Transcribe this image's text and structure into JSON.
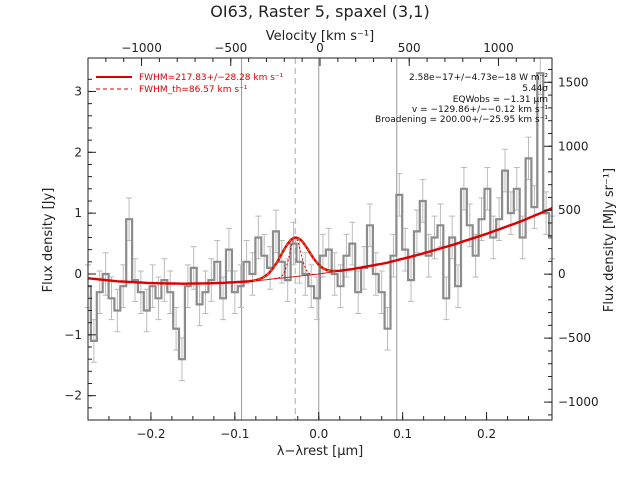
{
  "title": "OI63, Raster 5, spaxel (3,1)",
  "colors": {
    "spectrum": "#8c8c8c",
    "fit": "#dd0000",
    "component": "#e07020",
    "baseline": "#cc2222",
    "vlines": "#999999",
    "axes": "#222222"
  },
  "chart_data": {
    "type": "line",
    "xlabel": "λ−λrest [μm]",
    "ylabel": "Flux density [Jy]",
    "top_xlabel": "Velocity [km s⁻¹]",
    "right_ylabel": "Flux density [MJy sr⁻¹]",
    "xlim": [
      -0.275,
      0.278
    ],
    "ylim": [
      -2.4,
      3.55
    ],
    "right_ylim": [
      -1140,
      1690
    ],
    "top_xlim": [
      -1300,
      1300
    ],
    "x_ticks": [
      -0.2,
      -0.1,
      0.0,
      0.1,
      0.2
    ],
    "x_tick_labels": [
      "−0.2",
      "−0.1",
      "0.0",
      "0.1",
      "0.2"
    ],
    "y_ticks": [
      -2,
      -1,
      0,
      1,
      2,
      3
    ],
    "y_tick_labels": [
      "−2",
      "−1",
      "0",
      "1",
      "2",
      "3"
    ],
    "top_ticks": [
      -1000,
      -500,
      0,
      500,
      1000
    ],
    "top_tick_labels": [
      "−1000",
      "−500",
      "0",
      "500",
      "1000"
    ],
    "right_ticks": [
      -1000,
      -500,
      0,
      500,
      1000,
      1500
    ],
    "right_tick_labels": [
      "−1000",
      "−500",
      "0",
      "500",
      "1000",
      "1500"
    ],
    "vertical_lines": [
      -0.092,
      0.0,
      0.093
    ],
    "line_center": -0.028,
    "legend": [
      {
        "label": "FWHM=217.83+/−28.28 km s⁻¹",
        "style": "solid"
      },
      {
        "label": "FWHM_th=86.57 km s⁻¹",
        "style": "dashed"
      }
    ],
    "annotations": [
      "2.58e−17+/−4.73e−18 W m⁻²",
      "5.44σ",
      "EQWobs = −1.31 μm",
      "v = −129.86+/−−0.12 km s⁻¹",
      "Broadening = 200.00+/−25.95 km s⁻¹"
    ],
    "spectrum": {
      "name": "data",
      "x": [
        -0.275,
        -0.268,
        -0.261,
        -0.254,
        -0.247,
        -0.24,
        -0.233,
        -0.226,
        -0.219,
        -0.212,
        -0.205,
        -0.198,
        -0.191,
        -0.184,
        -0.177,
        -0.17,
        -0.163,
        -0.156,
        -0.149,
        -0.142,
        -0.135,
        -0.128,
        -0.121,
        -0.114,
        -0.107,
        -0.1,
        -0.093,
        -0.086,
        -0.079,
        -0.072,
        -0.065,
        -0.058,
        -0.051,
        -0.044,
        -0.037,
        -0.03,
        -0.023,
        -0.016,
        -0.009,
        -0.002,
        0.005,
        0.012,
        0.019,
        0.026,
        0.033,
        0.04,
        0.047,
        0.054,
        0.061,
        0.068,
        0.075,
        0.082,
        0.089,
        0.096,
        0.103,
        0.11,
        0.117,
        0.124,
        0.131,
        0.138,
        0.145,
        0.152,
        0.159,
        0.166,
        0.173,
        0.18,
        0.187,
        0.194,
        0.201,
        0.208,
        0.215,
        0.222,
        0.229,
        0.236,
        0.243,
        0.25,
        0.257,
        0.264,
        0.271,
        0.278
      ],
      "y": [
        -0.2,
        -1.1,
        -0.3,
        0.0,
        -0.4,
        -0.6,
        -0.2,
        0.9,
        -0.1,
        -0.3,
        -0.6,
        -0.2,
        -0.4,
        -0.1,
        -0.3,
        -0.9,
        -1.4,
        -0.2,
        0.1,
        -0.5,
        -0.3,
        -0.1,
        0.2,
        -0.4,
        0.4,
        -0.3,
        -0.2,
        0.2,
        0.0,
        0.6,
        0.3,
        0.1,
        0.7,
        0.2,
        -0.1,
        0.5,
        0.2,
        0.0,
        -0.2,
        -0.4,
        0.3,
        0.4,
        0.0,
        -0.2,
        0.3,
        0.5,
        -0.3,
        0.1,
        0.8,
        0.0,
        -0.3,
        -0.9,
        0.3,
        1.3,
        0.4,
        -0.1,
        0.7,
        1.2,
        0.3,
        0.6,
        0.8,
        -0.4,
        0.6,
        -0.2,
        1.4,
        0.8,
        0.3,
        0.9,
        1.4,
        0.6,
        0.9,
        1.7,
        1.0,
        1.4,
        0.6,
        1.9,
        1.1,
        3.3,
        1.0,
        0.6
      ],
      "yerr": [
        0.35,
        0.35,
        0.35,
        0.35,
        0.35,
        0.35,
        0.35,
        0.35,
        0.35,
        0.35,
        0.35,
        0.35,
        0.35,
        0.35,
        0.35,
        0.35,
        0.35,
        0.35,
        0.35,
        0.35,
        0.35,
        0.35,
        0.35,
        0.35,
        0.35,
        0.35,
        0.35,
        0.35,
        0.35,
        0.35,
        0.35,
        0.35,
        0.35,
        0.35,
        0.35,
        0.35,
        0.35,
        0.35,
        0.35,
        0.35,
        0.35,
        0.35,
        0.35,
        0.35,
        0.35,
        0.35,
        0.35,
        0.35,
        0.35,
        0.35,
        0.35,
        0.35,
        0.35,
        0.35,
        0.35,
        0.35,
        0.35,
        0.35,
        0.35,
        0.35,
        0.35,
        0.35,
        0.35,
        0.35,
        0.35,
        0.35,
        0.35,
        0.35,
        0.35,
        0.35,
        0.35,
        0.35,
        0.35,
        0.35,
        0.35,
        0.35,
        0.35,
        0.35,
        0.35,
        0.35
      ]
    },
    "baseline": {
      "name": "continuum",
      "x": [
        -0.275,
        -0.24,
        -0.2,
        -0.16,
        -0.12,
        -0.08,
        -0.04,
        0.0,
        0.04,
        0.08,
        0.12,
        0.16,
        0.2,
        0.24,
        0.278
      ],
      "y": [
        -0.07,
        -0.12,
        -0.15,
        -0.16,
        -0.15,
        -0.12,
        -0.06,
        0.0,
        0.08,
        0.18,
        0.32,
        0.48,
        0.66,
        0.86,
        1.08
      ]
    },
    "gaussian": {
      "center": -0.028,
      "amplitude": 0.64,
      "sigma": 0.0165
    },
    "gaussian_thermal": {
      "center": -0.028,
      "amplitude": 0.64,
      "sigma": 0.0066
    }
  }
}
